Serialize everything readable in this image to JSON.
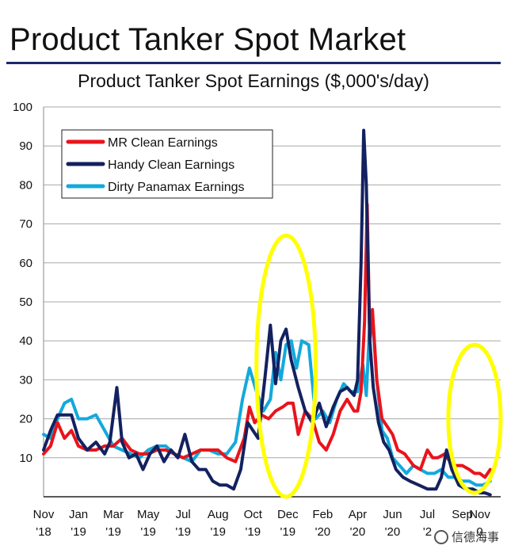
{
  "header": {
    "title": "Product Tanker Spot Market"
  },
  "chart_data": {
    "type": "line",
    "title": "Product Tanker Spot Earnings ($,000's/day)",
    "xlabel": "",
    "ylabel": "",
    "ylim": [
      0,
      100
    ],
    "yticks": [
      10,
      20,
      30,
      40,
      50,
      60,
      70,
      80,
      90,
      100
    ],
    "grid": true,
    "legend_position": "top-left",
    "x_tick_labels": [
      {
        "x": 0,
        "month": "Nov",
        "year": "'18"
      },
      {
        "x": 2,
        "month": "Jan",
        "year": "'19"
      },
      {
        "x": 4,
        "month": "Mar",
        "year": "'19"
      },
      {
        "x": 6,
        "month": "May",
        "year": "'19"
      },
      {
        "x": 8,
        "month": "Jul",
        "year": "'19"
      },
      {
        "x": 10,
        "month": "Aug",
        "year": "'19"
      },
      {
        "x": 12,
        "month": "Oct",
        "year": "'19"
      },
      {
        "x": 14,
        "month": "Dec",
        "year": "'19"
      },
      {
        "x": 16,
        "month": "Feb",
        "year": "'20"
      },
      {
        "x": 18,
        "month": "Apr",
        "year": "'20"
      },
      {
        "x": 20,
        "month": "Jun",
        "year": "'20"
      },
      {
        "x": 22,
        "month": "Jul",
        "year": "'2"
      },
      {
        "x": 24,
        "month": "Sep",
        "year": ""
      },
      {
        "x": 25,
        "month": "Nov",
        "year": "0"
      }
    ],
    "xlim": [
      0,
      26.2
    ],
    "series": [
      {
        "name": "MR Clean Earnings",
        "color": "#e8141c",
        "points": [
          [
            0,
            11
          ],
          [
            0.4,
            13
          ],
          [
            0.8,
            19
          ],
          [
            1.2,
            15
          ],
          [
            1.6,
            17
          ],
          [
            2,
            13
          ],
          [
            2.5,
            12
          ],
          [
            3,
            12
          ],
          [
            3.5,
            13
          ],
          [
            4,
            13
          ],
          [
            4.5,
            15
          ],
          [
            5,
            12
          ],
          [
            5.5,
            11
          ],
          [
            6,
            11
          ],
          [
            6.5,
            12
          ],
          [
            7,
            12
          ],
          [
            7.5,
            11
          ],
          [
            8,
            10
          ],
          [
            8.5,
            11
          ],
          [
            9,
            12
          ],
          [
            9.5,
            12
          ],
          [
            10,
            12
          ],
          [
            10.5,
            10
          ],
          [
            11,
            9
          ],
          [
            11.5,
            15
          ],
          [
            11.8,
            23
          ],
          [
            12.1,
            19
          ],
          [
            12.5,
            21
          ],
          [
            12.9,
            20
          ],
          [
            13.3,
            22
          ],
          [
            13.7,
            23
          ],
          [
            14,
            24
          ],
          [
            14.3,
            24
          ],
          [
            14.6,
            16
          ],
          [
            15,
            22
          ],
          [
            15.4,
            20
          ],
          [
            15.8,
            14
          ],
          [
            16.2,
            12
          ],
          [
            16.6,
            16
          ],
          [
            17,
            22
          ],
          [
            17.4,
            25
          ],
          [
            17.8,
            22
          ],
          [
            18,
            22
          ],
          [
            18.2,
            27
          ],
          [
            18.4,
            45
          ],
          [
            18.55,
            75
          ],
          [
            18.7,
            40
          ],
          [
            18.85,
            48
          ],
          [
            19.1,
            30
          ],
          [
            19.4,
            20
          ],
          [
            19.7,
            18
          ],
          [
            20,
            16
          ],
          [
            20.3,
            12
          ],
          [
            20.7,
            11
          ],
          [
            21.2,
            8
          ],
          [
            21.6,
            7
          ],
          [
            22,
            12
          ],
          [
            22.3,
            10
          ],
          [
            22.6,
            10
          ],
          [
            23,
            11
          ],
          [
            23.3,
            9
          ],
          [
            23.6,
            8
          ],
          [
            24,
            8
          ],
          [
            24.4,
            7
          ],
          [
            24.7,
            6
          ],
          [
            25,
            6
          ],
          [
            25.3,
            5
          ],
          [
            25.6,
            7
          ]
        ]
      },
      {
        "name": "Handy Clean Earnings",
        "color": "#132160",
        "points": [
          [
            0,
            12
          ],
          [
            0.4,
            17
          ],
          [
            0.8,
            21
          ],
          [
            1.2,
            21
          ],
          [
            1.6,
            21
          ],
          [
            2,
            15
          ],
          [
            2.5,
            12
          ],
          [
            3,
            14
          ],
          [
            3.5,
            11
          ],
          [
            3.8,
            14
          ],
          [
            4.2,
            28
          ],
          [
            4.5,
            14
          ],
          [
            4.9,
            10
          ],
          [
            5.3,
            11
          ],
          [
            5.7,
            7
          ],
          [
            6.1,
            11
          ],
          [
            6.5,
            13
          ],
          [
            6.9,
            9
          ],
          [
            7.3,
            12
          ],
          [
            7.7,
            10
          ],
          [
            8.1,
            16
          ],
          [
            8.5,
            9
          ],
          [
            8.9,
            7
          ],
          [
            9.3,
            7
          ],
          [
            9.7,
            4
          ],
          [
            10.1,
            3
          ],
          [
            10.5,
            3
          ],
          [
            10.9,
            2
          ],
          [
            11.3,
            7
          ],
          [
            11.7,
            19
          ],
          [
            12,
            17
          ],
          [
            12.3,
            15
          ],
          [
            12.7,
            31
          ],
          [
            13,
            44
          ],
          [
            13.3,
            29
          ],
          [
            13.6,
            40
          ],
          [
            13.9,
            43
          ],
          [
            14.2,
            35
          ],
          [
            14.6,
            28
          ],
          [
            15,
            22
          ],
          [
            15.4,
            19
          ],
          [
            15.8,
            24
          ],
          [
            16.2,
            18
          ],
          [
            16.6,
            23
          ],
          [
            17,
            27
          ],
          [
            17.4,
            28
          ],
          [
            17.8,
            26
          ],
          [
            18,
            30
          ],
          [
            18.2,
            60
          ],
          [
            18.35,
            94
          ],
          [
            18.5,
            80
          ],
          [
            18.7,
            40
          ],
          [
            18.9,
            28
          ],
          [
            19.2,
            19
          ],
          [
            19.5,
            14
          ],
          [
            19.8,
            12
          ],
          [
            20.2,
            7
          ],
          [
            20.6,
            5
          ],
          [
            21,
            4
          ],
          [
            21.5,
            3
          ],
          [
            22,
            2
          ],
          [
            22.5,
            2
          ],
          [
            22.8,
            5
          ],
          [
            23.1,
            12
          ],
          [
            23.4,
            7
          ],
          [
            23.8,
            3
          ],
          [
            24.2,
            2
          ],
          [
            24.6,
            2
          ],
          [
            25,
            1
          ],
          [
            25.3,
            1
          ],
          [
            25.6,
            0.5
          ]
        ]
      },
      {
        "name": "Dirty Panamax Earnings",
        "color": "#12a9dc",
        "points": [
          [
            0,
            16
          ],
          [
            0.4,
            15
          ],
          [
            0.8,
            20
          ],
          [
            1.2,
            24
          ],
          [
            1.6,
            25
          ],
          [
            2,
            20
          ],
          [
            2.5,
            20
          ],
          [
            3,
            21
          ],
          [
            3.5,
            17
          ],
          [
            4,
            13
          ],
          [
            4.5,
            12
          ],
          [
            5,
            11
          ],
          [
            5.5,
            10
          ],
          [
            6,
            12
          ],
          [
            6.5,
            13
          ],
          [
            7,
            13
          ],
          [
            7.5,
            11
          ],
          [
            8,
            10
          ],
          [
            8.5,
            9
          ],
          [
            9,
            12
          ],
          [
            9.5,
            12
          ],
          [
            10,
            11
          ],
          [
            10.5,
            11
          ],
          [
            11,
            14
          ],
          [
            11.4,
            25
          ],
          [
            11.8,
            33
          ],
          [
            12.2,
            27
          ],
          [
            12.6,
            22
          ],
          [
            13,
            25
          ],
          [
            13.3,
            37
          ],
          [
            13.6,
            30
          ],
          [
            13.9,
            39
          ],
          [
            14.2,
            40
          ],
          [
            14.5,
            33
          ],
          [
            14.8,
            40
          ],
          [
            15.2,
            39
          ],
          [
            15.6,
            20
          ],
          [
            16,
            22
          ],
          [
            16.4,
            19
          ],
          [
            16.8,
            25
          ],
          [
            17.2,
            29
          ],
          [
            17.6,
            27
          ],
          [
            18,
            27
          ],
          [
            18.3,
            34
          ],
          [
            18.5,
            26
          ],
          [
            18.7,
            45
          ],
          [
            18.85,
            46
          ],
          [
            19.1,
            30
          ],
          [
            19.4,
            17
          ],
          [
            19.7,
            15
          ],
          [
            20,
            10
          ],
          [
            20.4,
            8
          ],
          [
            20.8,
            6
          ],
          [
            21.2,
            8
          ],
          [
            21.6,
            7
          ],
          [
            22,
            6
          ],
          [
            22.4,
            6
          ],
          [
            22.8,
            7
          ],
          [
            23.2,
            5
          ],
          [
            23.6,
            5
          ],
          [
            24,
            4
          ],
          [
            24.4,
            4
          ],
          [
            24.8,
            3
          ],
          [
            25.2,
            3
          ],
          [
            25.6,
            4
          ]
        ]
      }
    ],
    "annotations": [
      {
        "kind": "ellipse",
        "color": "#ffff00",
        "x_center": 13.9,
        "y_center": 33.5,
        "x_radius": 1.7,
        "y_radius": 33.5
      },
      {
        "kind": "ellipse",
        "color": "#ffff00",
        "x_center": 24.7,
        "y_center": 20,
        "x_radius": 1.5,
        "y_radius": 19
      }
    ]
  },
  "watermark": {
    "text": "信德海事"
  }
}
